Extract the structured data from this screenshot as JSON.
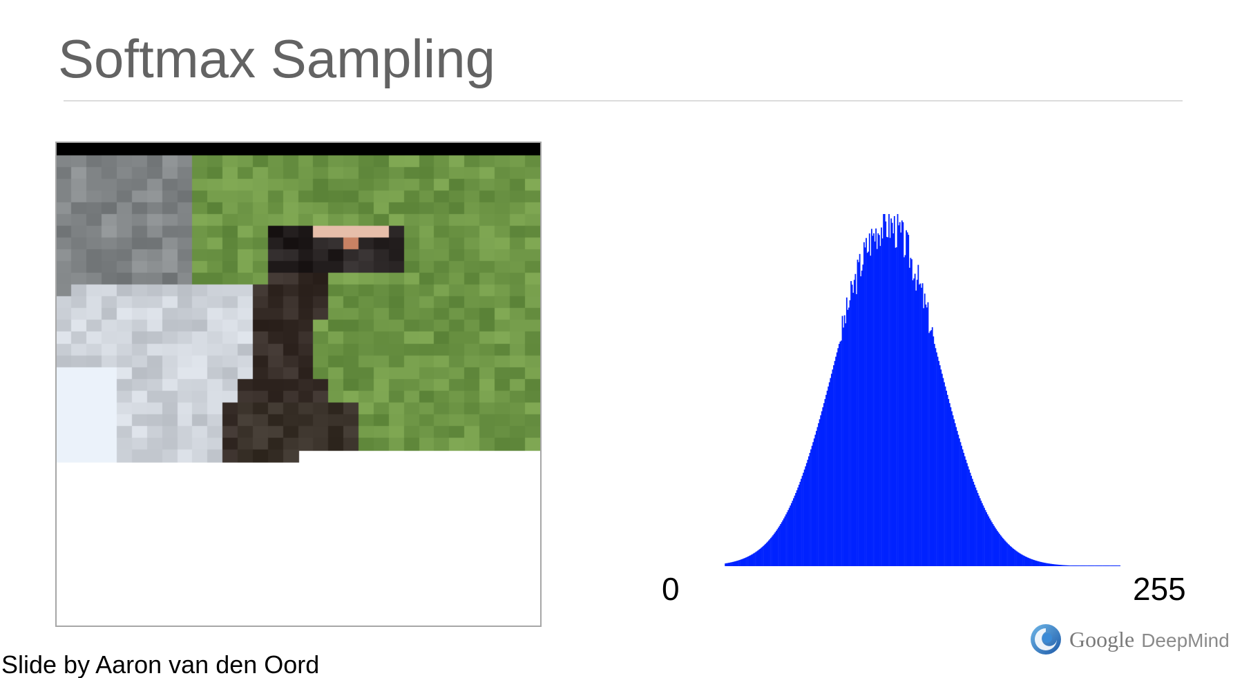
{
  "slide": {
    "title": "Softmax Sampling",
    "credit": "Slide by Aaron van den Oord"
  },
  "image_panel": {
    "description_icon": "pixelated-bird-image",
    "grid_cols": 32,
    "generated_rows_complete": 25,
    "partial_row_pixels": 16
  },
  "chart_data": {
    "type": "bar",
    "x_range": [
      0,
      255
    ],
    "tick_labels": [
      "0",
      "255"
    ],
    "color": "#0022ff",
    "title": "",
    "xlabel": "",
    "ylabel": "",
    "distribution": {
      "mode_region": [
        100,
        125
      ],
      "support": [
        38,
        220
      ]
    }
  },
  "branding": {
    "logo_word": "Google",
    "logo_suffix": "DeepMind",
    "logo_icon": "deepmind-swirl-icon"
  }
}
